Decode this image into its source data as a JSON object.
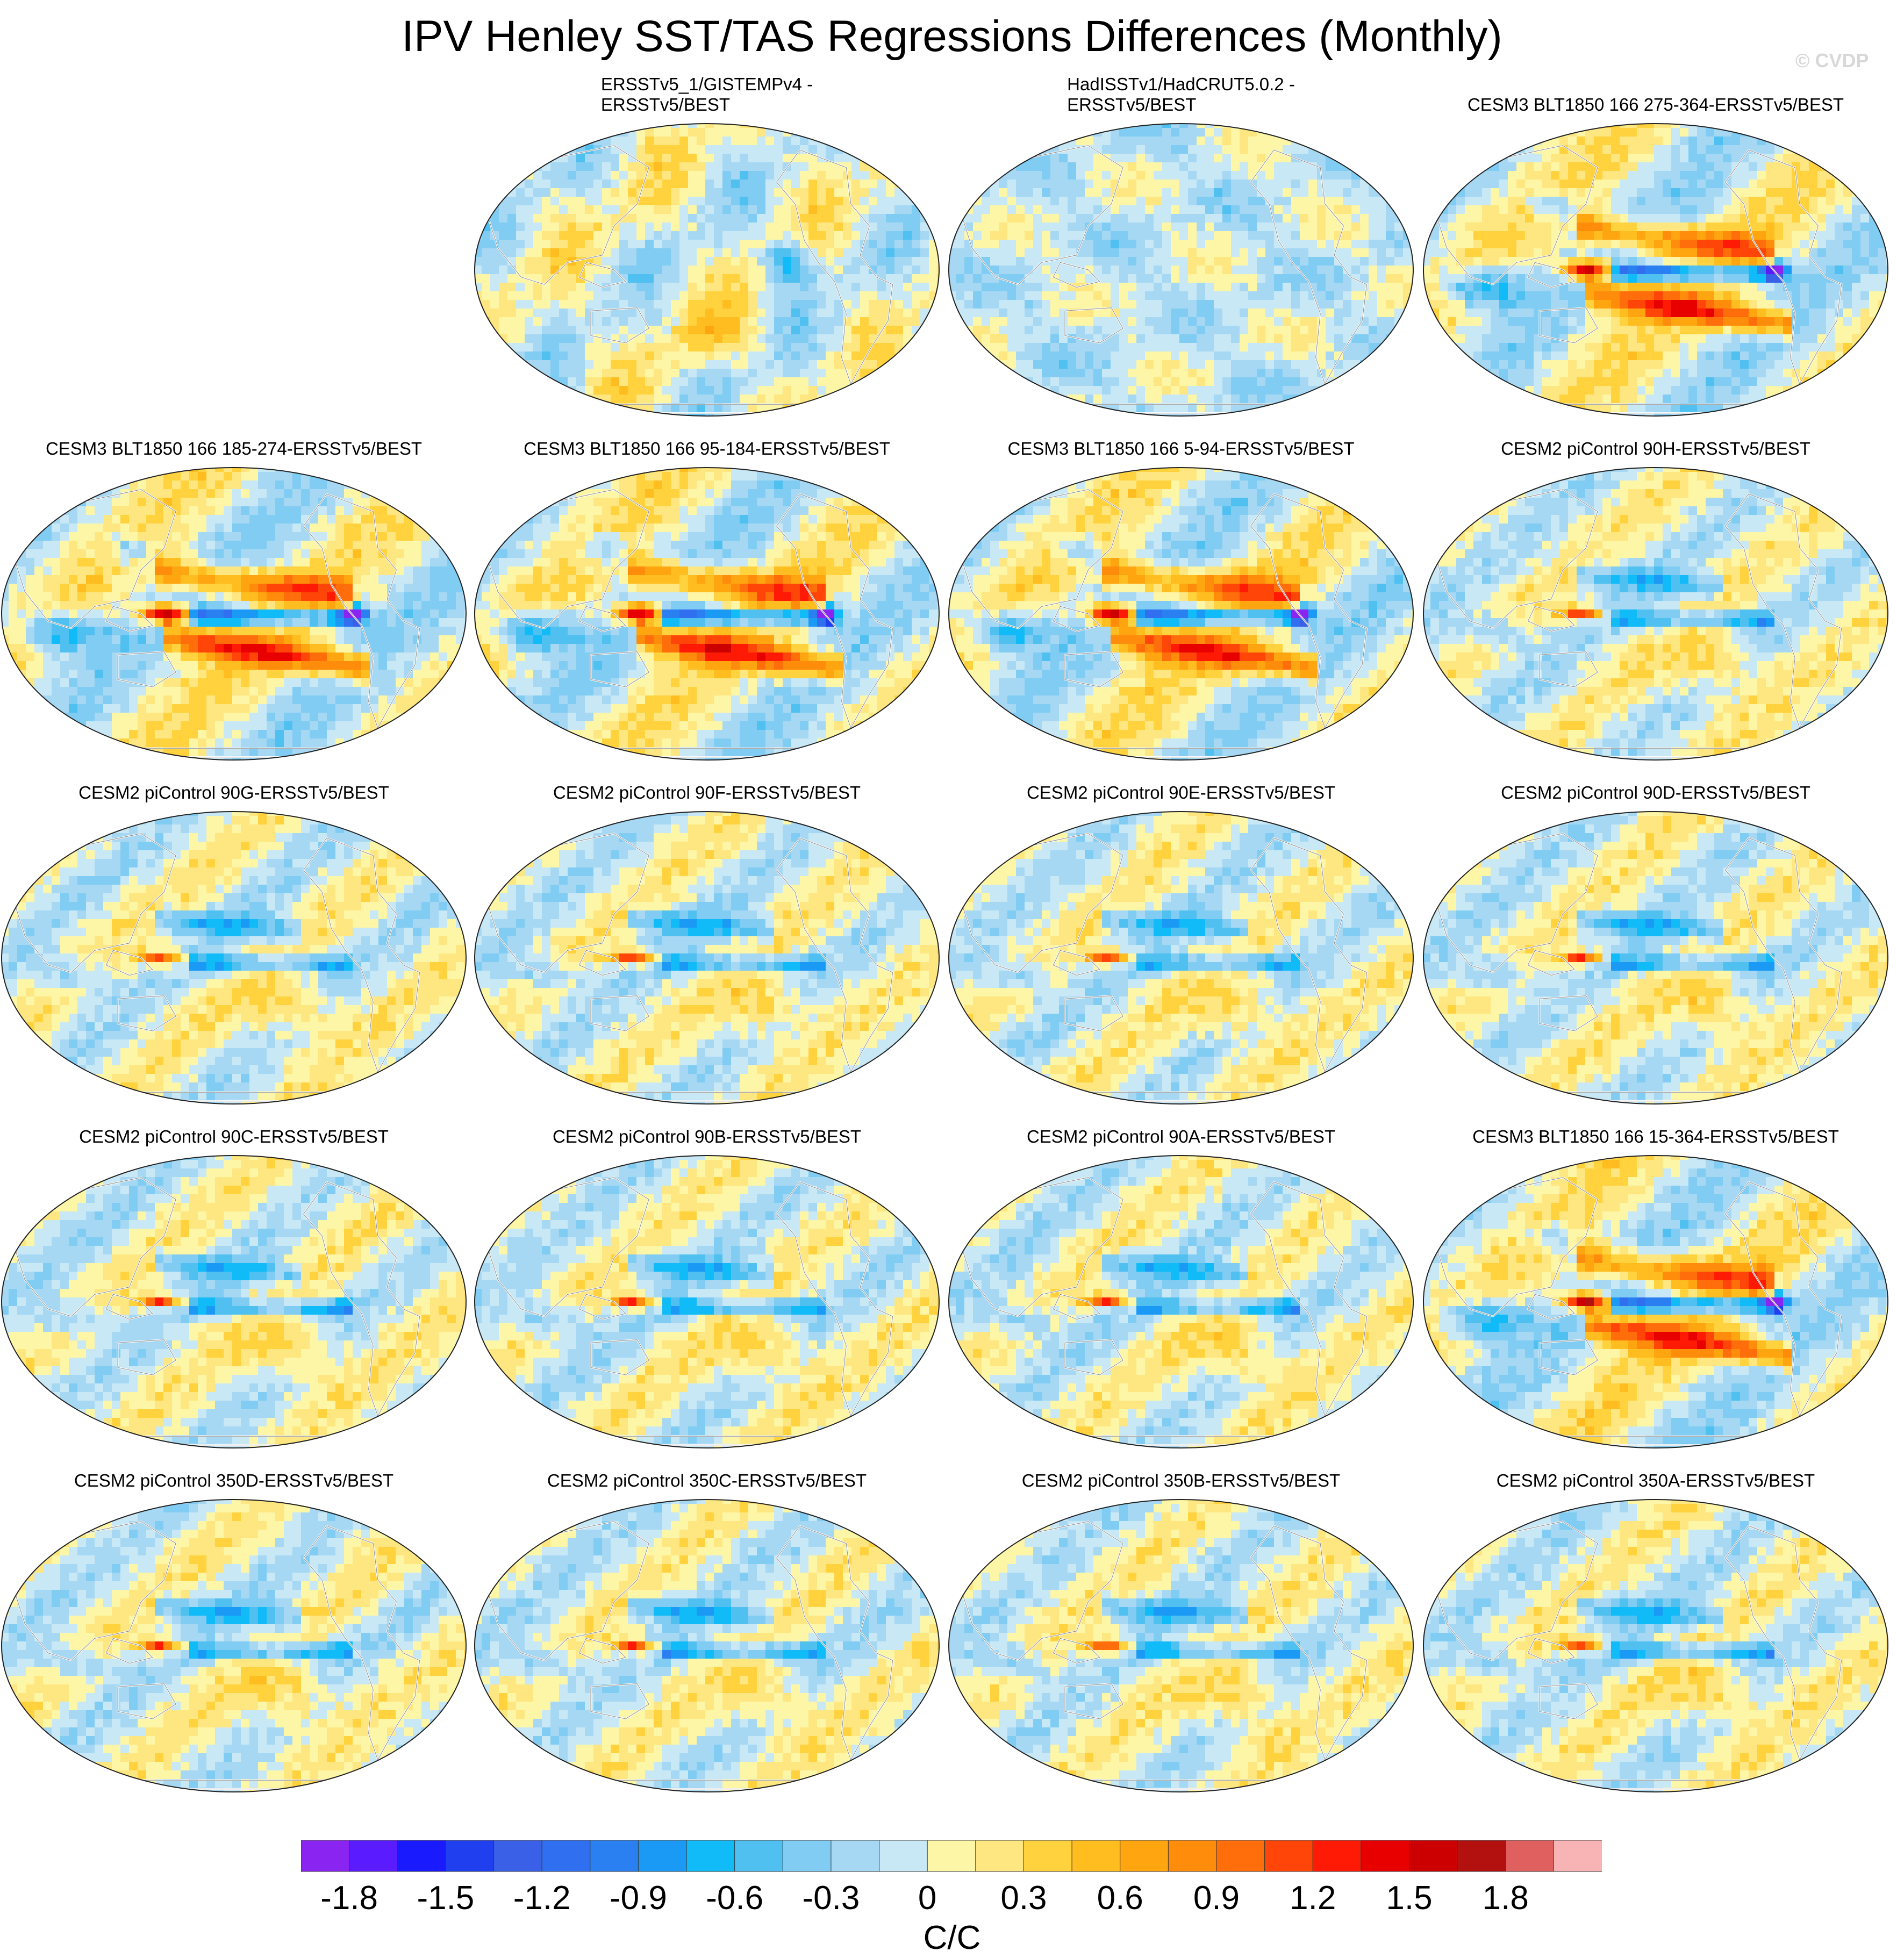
{
  "title": "IPV Henley SST/TAS Regressions Differences (Monthly)",
  "copyright": "© CVDP",
  "panels": [
    {
      "title": "ERSSTv5_1/GISTEMPv4 -\nERSSTv5/BEST",
      "pattern": "obs-a"
    },
    {
      "title": "HadISSTv1/HadCRUT5.0.2 -\nERSSTv5/BEST",
      "pattern": "obs-b"
    },
    {
      "title": "CESM3 BLT1850 166 275-364-ERSSTv5/BEST",
      "pattern": "strong"
    },
    {
      "title": "CESM3 BLT1850 166 185-274-ERSSTv5/BEST",
      "pattern": "strong"
    },
    {
      "title": "CESM3 BLT1850 166 95-184-ERSSTv5/BEST",
      "pattern": "strong"
    },
    {
      "title": "CESM3 BLT1850 166 5-94-ERSSTv5/BEST",
      "pattern": "strong"
    },
    {
      "title": "CESM2 piControl 90H-ERSSTv5/BEST",
      "pattern": "moderate"
    },
    {
      "title": "CESM2 piControl 90G-ERSSTv5/BEST",
      "pattern": "moderate"
    },
    {
      "title": "CESM2 piControl 90F-ERSSTv5/BEST",
      "pattern": "moderate"
    },
    {
      "title": "CESM2 piControl 90E-ERSSTv5/BEST",
      "pattern": "moderate"
    },
    {
      "title": "CESM2 piControl 90D-ERSSTv5/BEST",
      "pattern": "moderate"
    },
    {
      "title": "CESM2 piControl 90C-ERSSTv5/BEST",
      "pattern": "moderate"
    },
    {
      "title": "CESM2 piControl 90B-ERSSTv5/BEST",
      "pattern": "moderate"
    },
    {
      "title": "CESM2 piControl 90A-ERSSTv5/BEST",
      "pattern": "moderate"
    },
    {
      "title": "CESM3 BLT1850 166 15-364-ERSSTv5/BEST",
      "pattern": "strong"
    },
    {
      "title": "CESM2 piControl 350D-ERSSTv5/BEST",
      "pattern": "moderate"
    },
    {
      "title": "CESM2 piControl 350C-ERSSTv5/BEST",
      "pattern": "moderate"
    },
    {
      "title": "CESM2 piControl 350B-ERSSTv5/BEST",
      "pattern": "moderate"
    },
    {
      "title": "CESM2 piControl 350A-ERSSTv5/BEST",
      "pattern": "moderate"
    }
  ],
  "colorbar": {
    "units": "C/C",
    "tick_labels": [
      "-1.8",
      "-1.5",
      "-1.2",
      "-0.9",
      "-0.6",
      "-0.3",
      "0",
      "0.3",
      "0.6",
      "0.9",
      "1.2",
      "1.5",
      "1.8"
    ],
    "colors": [
      "#8a24f0",
      "#5a1bff",
      "#1a1aff",
      "#2040f0",
      "#3a60e8",
      "#2f6ff0",
      "#2a80f0",
      "#1a9af5",
      "#10bbf8",
      "#4fc0f0",
      "#80ccf2",
      "#a6d8f4",
      "#c8e8f6",
      "#fdf6a6",
      "#fee680",
      "#ffd23e",
      "#ffbd20",
      "#ffa510",
      "#ff8c0a",
      "#ff6e0a",
      "#ff4508",
      "#ff1a05",
      "#e80000",
      "#cc0000",
      "#b31010",
      "#e06060",
      "#f8b4b4"
    ]
  }
}
